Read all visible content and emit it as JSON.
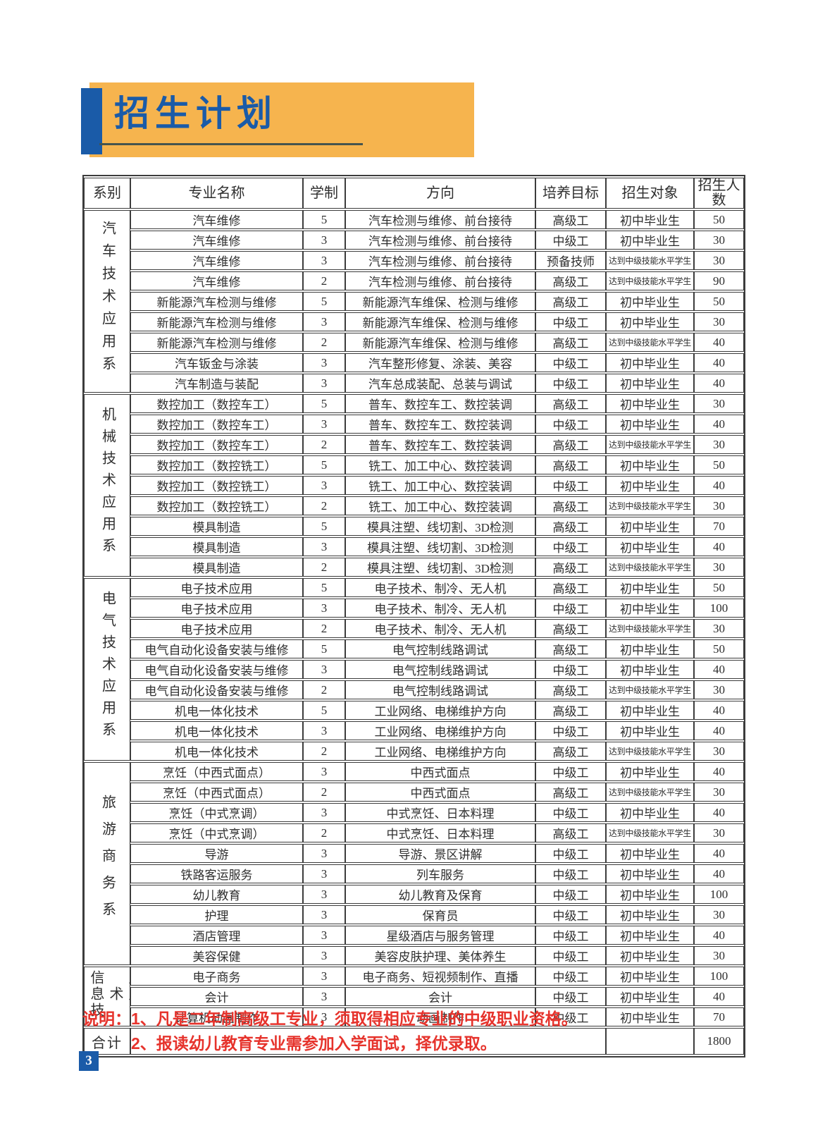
{
  "banner": {
    "title": "招生计划",
    "chevrons": ">>>"
  },
  "page_number": "3",
  "notes": {
    "label": "说明：",
    "items": [
      "1、凡是二年制高级工专业，须取得相应专业的中级职业资格。",
      "2、报读幼儿教育专业需参加入学面试，择优录取。"
    ]
  },
  "colors": {
    "banner_orange": "#F6B44E",
    "accent_blue": "#1A5BA8",
    "underline_dark": "#45544E",
    "chevron_light": "#EDEBE3",
    "note_red": "#E6332C",
    "table_border": "#3C3C3C"
  },
  "table": {
    "headers": [
      "系别",
      "专业名称",
      "学制",
      "方向",
      "培养目标",
      "招生对象",
      "招生人数"
    ],
    "sections": [
      {
        "department": "汽车技术应用系",
        "rows": [
          {
            "major": "汽车维修",
            "years": "5",
            "direction": "汽车检测与维修、前台接待",
            "target": "高级工",
            "audience": "初中毕业生",
            "count": "50"
          },
          {
            "major": "汽车维修",
            "years": "3",
            "direction": "汽车检测与维修、前台接待",
            "target": "中级工",
            "audience": "初中毕业生",
            "count": "30"
          },
          {
            "major": "汽车维修",
            "years": "3",
            "direction": "汽车检测与维修、前台接待",
            "target": "预备技师",
            "audience": "达到中级技能水平学生",
            "count": "30"
          },
          {
            "major": "汽车维修",
            "years": "2",
            "direction": "汽车检测与维修、前台接待",
            "target": "高级工",
            "audience": "达到中级技能水平学生",
            "count": "90"
          },
          {
            "major": "新能源汽车检测与维修",
            "years": "5",
            "direction": "新能源汽车维保、检测与维修",
            "target": "高级工",
            "audience": "初中毕业生",
            "count": "50"
          },
          {
            "major": "新能源汽车检测与维修",
            "years": "3",
            "direction": "新能源汽车维保、检测与维修",
            "target": "中级工",
            "audience": "初中毕业生",
            "count": "30"
          },
          {
            "major": "新能源汽车检测与维修",
            "years": "2",
            "direction": "新能源汽车维保、检测与维修",
            "target": "高级工",
            "audience": "达到中级技能水平学生",
            "count": "40"
          },
          {
            "major": "汽车钣金与涂装",
            "years": "3",
            "direction": "汽车整形修复、涂装、美容",
            "target": "中级工",
            "audience": "初中毕业生",
            "count": "40"
          },
          {
            "major": "汽车制造与装配",
            "years": "3",
            "direction": "汽车总成装配、总装与调试",
            "target": "中级工",
            "audience": "初中毕业生",
            "count": "40"
          }
        ]
      },
      {
        "department": "机械技术应用系",
        "rows": [
          {
            "major": "数控加工（数控车工）",
            "years": "5",
            "direction": "普车、数控车工、数控装调",
            "target": "高级工",
            "audience": "初中毕业生",
            "count": "30"
          },
          {
            "major": "数控加工（数控车工）",
            "years": "3",
            "direction": "普车、数控车工、数控装调",
            "target": "中级工",
            "audience": "初中毕业生",
            "count": "40"
          },
          {
            "major": "数控加工（数控车工）",
            "years": "2",
            "direction": "普车、数控车工、数控装调",
            "target": "高级工",
            "audience": "达到中级技能水平学生",
            "count": "30"
          },
          {
            "major": "数控加工（数控铣工）",
            "years": "5",
            "direction": "铣工、加工中心、数控装调",
            "target": "高级工",
            "audience": "初中毕业生",
            "count": "50"
          },
          {
            "major": "数控加工（数控铣工）",
            "years": "3",
            "direction": "铣工、加工中心、数控装调",
            "target": "中级工",
            "audience": "初中毕业生",
            "count": "40"
          },
          {
            "major": "数控加工（数控铣工）",
            "years": "2",
            "direction": "铣工、加工中心、数控装调",
            "target": "高级工",
            "audience": "达到中级技能水平学生",
            "count": "30"
          },
          {
            "major": "模具制造",
            "years": "5",
            "direction": "模具注塑、线切割、3D检测",
            "target": "高级工",
            "audience": "初中毕业生",
            "count": "70"
          },
          {
            "major": "模具制造",
            "years": "3",
            "direction": "模具注塑、线切割、3D检测",
            "target": "中级工",
            "audience": "初中毕业生",
            "count": "40"
          },
          {
            "major": "模具制造",
            "years": "2",
            "direction": "模具注塑、线切割、3D检测",
            "target": "高级工",
            "audience": "达到中级技能水平学生",
            "count": "30"
          }
        ]
      },
      {
        "department": "电气技术应用系",
        "rows": [
          {
            "major": "电子技术应用",
            "years": "5",
            "direction": "电子技术、制冷、无人机",
            "target": "高级工",
            "audience": "初中毕业生",
            "count": "50"
          },
          {
            "major": "电子技术应用",
            "years": "3",
            "direction": "电子技术、制冷、无人机",
            "target": "中级工",
            "audience": "初中毕业生",
            "count": "100"
          },
          {
            "major": "电子技术应用",
            "years": "2",
            "direction": "电子技术、制冷、无人机",
            "target": "高级工",
            "audience": "达到中级技能水平学生",
            "count": "30"
          },
          {
            "major": "电气自动化设备安装与维修",
            "years": "5",
            "direction": "电气控制线路调试",
            "target": "高级工",
            "audience": "初中毕业生",
            "count": "50"
          },
          {
            "major": "电气自动化设备安装与维修",
            "years": "3",
            "direction": "电气控制线路调试",
            "target": "中级工",
            "audience": "初中毕业生",
            "count": "40"
          },
          {
            "major": "电气自动化设备安装与维修",
            "years": "2",
            "direction": "电气控制线路调试",
            "target": "高级工",
            "audience": "达到中级技能水平学生",
            "count": "30"
          },
          {
            "major": "机电一体化技术",
            "years": "5",
            "direction": "工业网络、电梯维护方向",
            "target": "高级工",
            "audience": "初中毕业生",
            "count": "40"
          },
          {
            "major": "机电一体化技术",
            "years": "3",
            "direction": "工业网络、电梯维护方向",
            "target": "中级工",
            "audience": "初中毕业生",
            "count": "40"
          },
          {
            "major": "机电一体化技术",
            "years": "2",
            "direction": "工业网络、电梯维护方向",
            "target": "高级工",
            "audience": "达到中级技能水平学生",
            "count": "30"
          }
        ]
      },
      {
        "department": "旅游商务系",
        "rows": [
          {
            "major": "烹饪（中西式面点）",
            "years": "3",
            "direction": "中西式面点",
            "target": "中级工",
            "audience": "初中毕业生",
            "count": "40"
          },
          {
            "major": "烹饪（中西式面点）",
            "years": "2",
            "direction": "中西式面点",
            "target": "高级工",
            "audience": "达到中级技能水平学生",
            "count": "30"
          },
          {
            "major": "烹饪（中式烹调）",
            "years": "3",
            "direction": "中式烹饪、日本料理",
            "target": "中级工",
            "audience": "初中毕业生",
            "count": "40"
          },
          {
            "major": "烹饪（中式烹调）",
            "years": "2",
            "direction": "中式烹饪、日本料理",
            "target": "高级工",
            "audience": "达到中级技能水平学生",
            "count": "30"
          },
          {
            "major": "导游",
            "years": "3",
            "direction": "导游、景区讲解",
            "target": "中级工",
            "audience": "初中毕业生",
            "count": "40"
          },
          {
            "major": "铁路客运服务",
            "years": "3",
            "direction": "列车服务",
            "target": "中级工",
            "audience": "初中毕业生",
            "count": "40"
          },
          {
            "major": "幼儿教育",
            "years": "3",
            "direction": "幼儿教育及保育",
            "target": "中级工",
            "audience": "初中毕业生",
            "count": "100"
          },
          {
            "major": "护理",
            "years": "3",
            "direction": "保育员",
            "target": "中级工",
            "audience": "初中毕业生",
            "count": "30"
          },
          {
            "major": "酒店管理",
            "years": "3",
            "direction": "星级酒店与服务管理",
            "target": "中级工",
            "audience": "初中毕业生",
            "count": "40"
          },
          {
            "major": "美容保健",
            "years": "3",
            "direction": "美容皮肤护理、美体养生",
            "target": "中级工",
            "audience": "初中毕业生",
            "count": "30"
          }
        ]
      },
      {
        "department": "信息技术\n应用系",
        "rows": [
          {
            "major": "电子商务",
            "years": "3",
            "direction": "电子商务、短视频制作、直播",
            "target": "中级工",
            "audience": "初中毕业生",
            "count": "100"
          },
          {
            "major": "会计",
            "years": "3",
            "direction": "会计",
            "target": "中级工",
            "audience": "初中毕业生",
            "count": "40"
          },
          {
            "major": "计算机动画制作",
            "years": "3",
            "direction": "动画制作",
            "target": "中级工",
            "audience": "初中毕业生",
            "count": "70"
          }
        ]
      }
    ],
    "total": {
      "label": "合计",
      "value": "1800"
    }
  }
}
